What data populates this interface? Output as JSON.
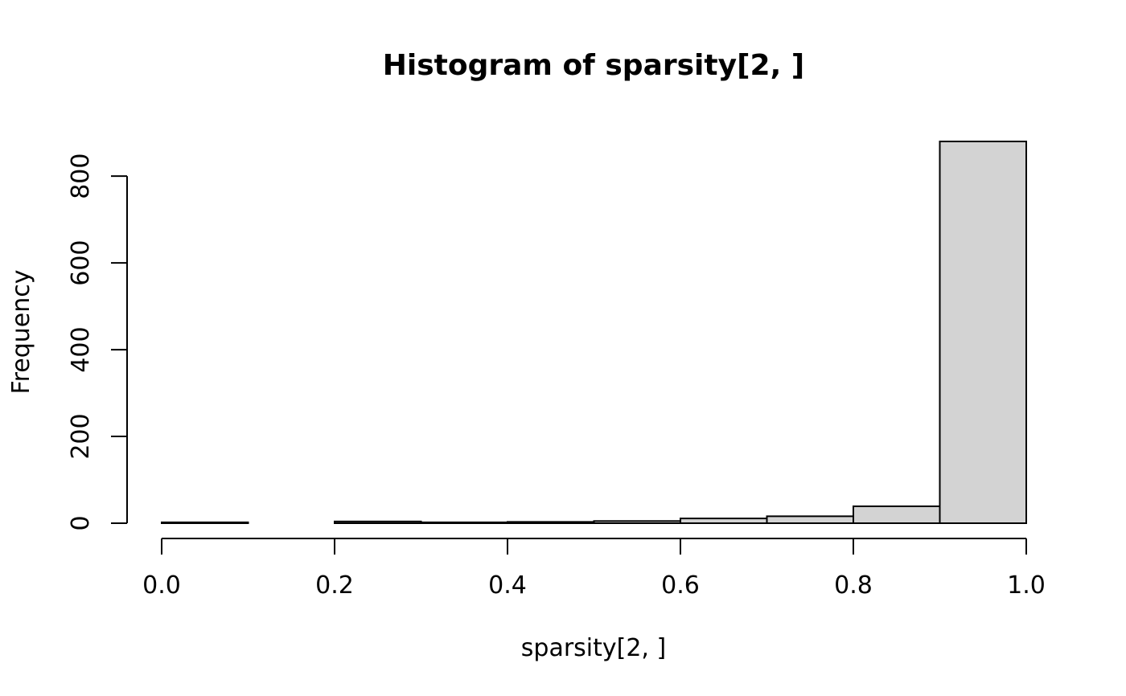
{
  "chart_data": {
    "type": "bar",
    "title": "Histogram of sparsity[2, ]",
    "xlabel": "sparsity[2, ]",
    "ylabel": "Frequency",
    "bins": [
      {
        "x0": 0.0,
        "x1": 0.1,
        "count": 2
      },
      {
        "x0": 0.1,
        "x1": 0.2,
        "count": 0
      },
      {
        "x0": 0.2,
        "x1": 0.3,
        "count": 4
      },
      {
        "x0": 0.3,
        "x1": 0.4,
        "count": 2
      },
      {
        "x0": 0.4,
        "x1": 0.5,
        "count": 3
      },
      {
        "x0": 0.5,
        "x1": 0.6,
        "count": 5
      },
      {
        "x0": 0.6,
        "x1": 0.7,
        "count": 11
      },
      {
        "x0": 0.7,
        "x1": 0.8,
        "count": 16
      },
      {
        "x0": 0.8,
        "x1": 0.9,
        "count": 39
      },
      {
        "x0": 0.9,
        "x1": 1.0,
        "count": 880
      }
    ],
    "xlim": [
      0,
      1
    ],
    "ylim": [
      0,
      880
    ],
    "x_ticks": [
      "0.0",
      "0.2",
      "0.4",
      "0.6",
      "0.8",
      "1.0"
    ],
    "y_ticks": [
      "0",
      "200",
      "400",
      "600",
      "800"
    ],
    "bar_fill": "#d3d3d3",
    "bar_stroke": "#000000",
    "grid": false,
    "legend": "none"
  }
}
